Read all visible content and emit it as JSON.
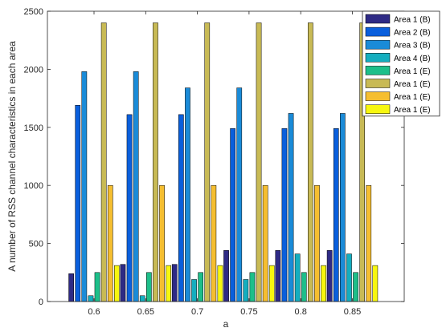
{
  "chart_data": {
    "type": "bar",
    "xlabel": "a",
    "ylabel": "A number of RSS channel characteristics in each area",
    "categories": [
      "0.6",
      "0.65",
      "0.7",
      "0.75",
      "0.8",
      "0.85"
    ],
    "ylim": [
      0,
      2500
    ],
    "yticks": [
      0,
      500,
      1000,
      1500,
      2000,
      2500
    ],
    "legend_position": "top-right",
    "grid": false,
    "series": [
      {
        "name": "Area 1 (B)",
        "color": "#2e2a85",
        "values": [
          240,
          320,
          320,
          440,
          440,
          440
        ]
      },
      {
        "name": "Area 2 (B)",
        "color": "#0a5fdc",
        "values": [
          1690,
          1610,
          1610,
          1490,
          1490,
          1490
        ]
      },
      {
        "name": "Area 3 (B)",
        "color": "#1a8bd8",
        "values": [
          1980,
          1980,
          1840,
          1840,
          1620,
          1620
        ]
      },
      {
        "name": "Area 4 (B)",
        "color": "#14aebf",
        "values": [
          50,
          50,
          190,
          190,
          410,
          410
        ]
      },
      {
        "name": "Area 1 (E)",
        "color": "#1dbf8a",
        "values": [
          250,
          250,
          250,
          250,
          250,
          250
        ]
      },
      {
        "name": "Area 1 (E)",
        "color": "#c8ba55",
        "values": [
          2400,
          2400,
          2400,
          2400,
          2400,
          2400
        ]
      },
      {
        "name": "Area 1 (E)",
        "color": "#f5be30",
        "values": [
          1000,
          1000,
          1000,
          1000,
          1000,
          1000
        ]
      },
      {
        "name": "Area 1 (E)",
        "color": "#f7f70f",
        "values": [
          310,
          310,
          310,
          310,
          310,
          310
        ]
      }
    ]
  }
}
